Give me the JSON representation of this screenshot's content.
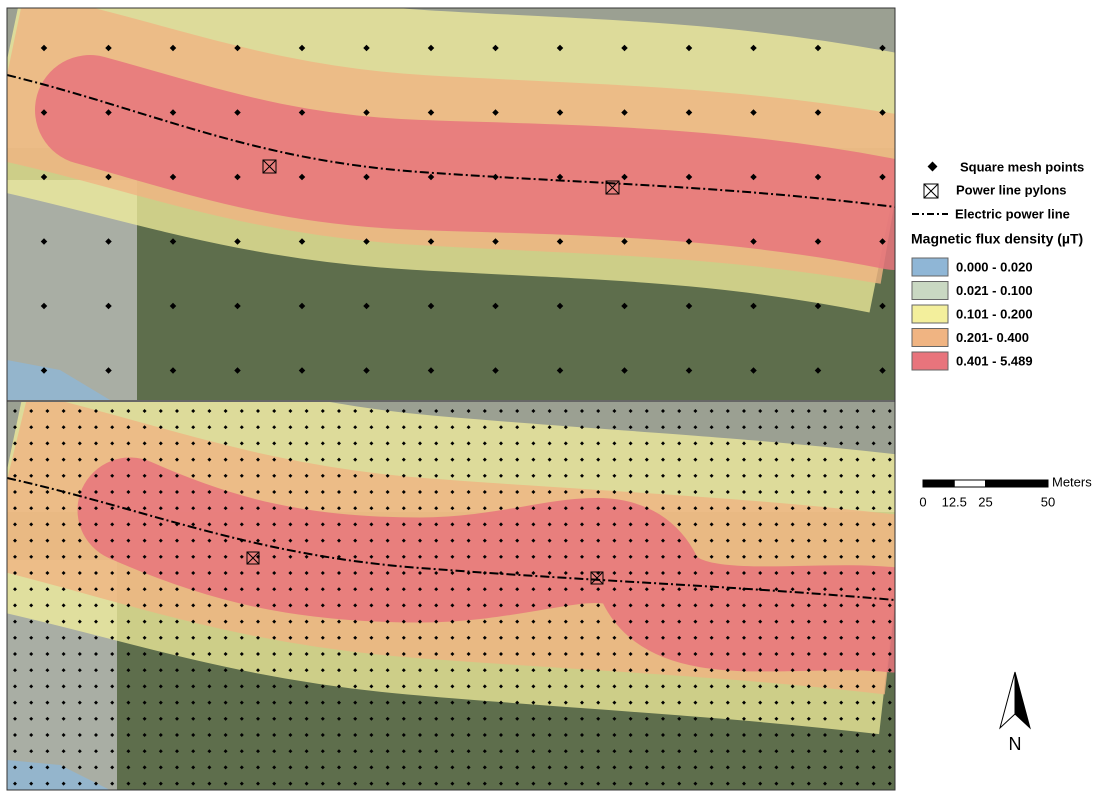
{
  "legend": {
    "items": [
      "Square mesh points",
      "Power line pylons",
      "Electric power line"
    ],
    "title": "Magnetic flux density (µT)",
    "classes": [
      {
        "label": "0.000 - 0.020",
        "color": "#8fb6d6"
      },
      {
        "label": "0.021 - 0.100",
        "color": "#c9d8c2"
      },
      {
        "label": "0.101 - 0.200",
        "color": "#f3ef9c"
      },
      {
        "label": "0.201- 0.400",
        "color": "#f0b482"
      },
      {
        "label": "0.401 - 5.489",
        "color": "#e8747c"
      }
    ]
  },
  "scale_bar": {
    "unit": "Meters",
    "ticks": [
      0,
      12.5,
      25,
      50
    ]
  },
  "north_arrow": "N"
}
